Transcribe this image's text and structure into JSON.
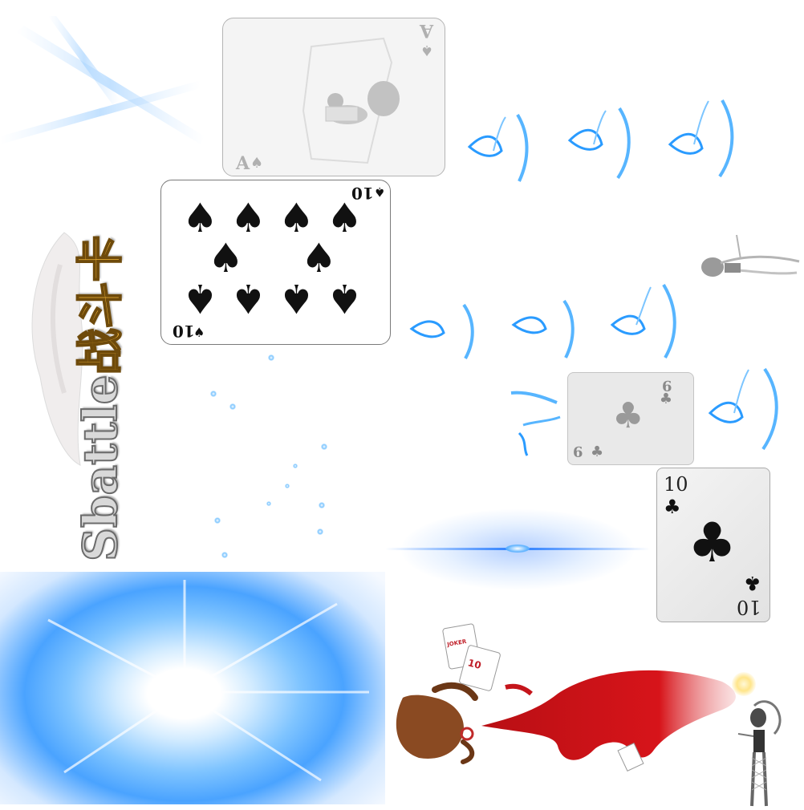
{
  "logo": {
    "latin": "Sbattle",
    "cjk": "战斗卡"
  },
  "cards": {
    "ace_spades": {
      "rank": "A",
      "suit": "♠"
    },
    "ten_spades": {
      "rank": "10",
      "suit": "♠"
    },
    "nine_clubs": {
      "rank": "9",
      "suit": "♣"
    },
    "ten_clubs": {
      "rank": "10",
      "suit": "♣"
    }
  },
  "mini_cards": {
    "joker_text": "JOKER",
    "rank_text": "10"
  },
  "colors": {
    "glow_blue": "#3aa8ff",
    "cape_red": "#d7141a",
    "logo_gold": "#f3b73a",
    "hair_brown": "#8a4a22"
  }
}
